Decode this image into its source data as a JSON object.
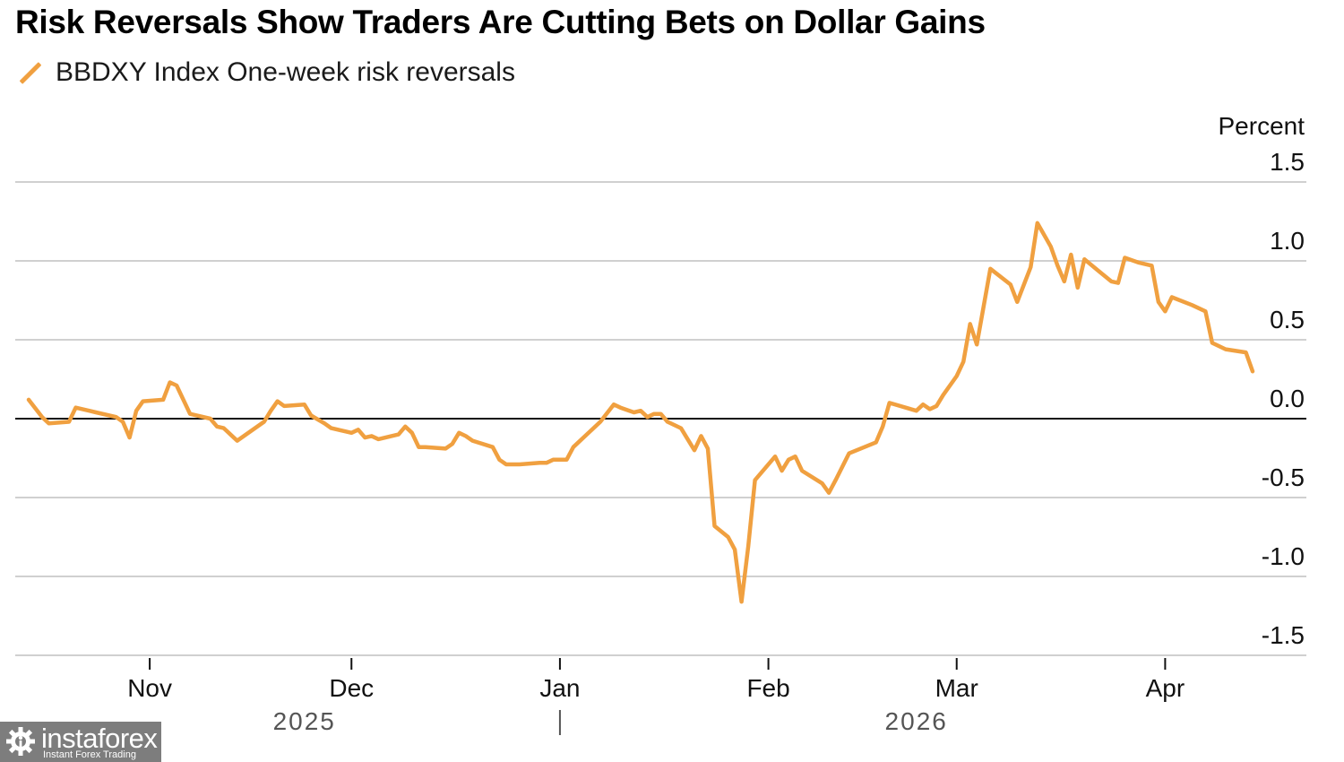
{
  "chart_data": {
    "type": "line",
    "title": "Risk Reversals Show Traders Are Cutting Bets on Dollar Gains",
    "legend": [
      {
        "name": "BBDXY Index One-week risk reversals",
        "color": "#f0a040"
      }
    ],
    "legend_placement": "top-left",
    "ylabel": "Percent",
    "ylim": [
      -1.5,
      1.5
    ],
    "yticks": [
      1.5,
      1.0,
      0.5,
      0.0,
      -0.5,
      -1.0,
      -1.5
    ],
    "ytick_labels": [
      "1.5",
      "1.0",
      "0.5",
      "0.0",
      "-0.5",
      "-1.0",
      "-1.5"
    ],
    "y_axis_side": "right",
    "grid": true,
    "zero_line": true,
    "xlim": [
      "2025-10-12",
      "2026-04-22"
    ],
    "xticks": [
      {
        "date": "2025-11-01",
        "label": "Nov"
      },
      {
        "date": "2025-12-01",
        "label": "Dec"
      },
      {
        "date": "2026-01-01",
        "label": "Jan"
      },
      {
        "date": "2026-02-01",
        "label": "Feb"
      },
      {
        "date": "2026-03-01",
        "label": "Mar"
      },
      {
        "date": "2026-04-01",
        "label": "Apr"
      }
    ],
    "year_labels": [
      {
        "label": "2025",
        "center_date": "2025-11-24"
      },
      {
        "label": "2026",
        "center_date": "2026-02-23"
      }
    ],
    "year_divider_date": "2026-01-01",
    "series": [
      {
        "name": "BBDXY Index One-week risk reversals",
        "color": "#f0a040",
        "points": [
          [
            "2025-10-14",
            0.12
          ],
          [
            "2025-10-16",
            0.01
          ],
          [
            "2025-10-17",
            -0.03
          ],
          [
            "2025-10-20",
            -0.02
          ],
          [
            "2025-10-21",
            0.07
          ],
          [
            "2025-10-23",
            0.05
          ],
          [
            "2025-10-24",
            0.04
          ],
          [
            "2025-10-27",
            0.01
          ],
          [
            "2025-10-28",
            -0.02
          ],
          [
            "2025-10-29",
            -0.12
          ],
          [
            "2025-10-30",
            0.05
          ],
          [
            "2025-10-31",
            0.11
          ],
          [
            "2025-11-03",
            0.12
          ],
          [
            "2025-11-04",
            0.23
          ],
          [
            "2025-11-05",
            0.21
          ],
          [
            "2025-11-07",
            0.03
          ],
          [
            "2025-11-10",
            0.0
          ],
          [
            "2025-11-11",
            -0.05
          ],
          [
            "2025-11-12",
            -0.06
          ],
          [
            "2025-11-14",
            -0.14
          ],
          [
            "2025-11-18",
            -0.02
          ],
          [
            "2025-11-19",
            0.05
          ],
          [
            "2025-11-20",
            0.11
          ],
          [
            "2025-11-21",
            0.08
          ],
          [
            "2025-11-24",
            0.09
          ],
          [
            "2025-11-25",
            0.02
          ],
          [
            "2025-11-27",
            -0.03
          ],
          [
            "2025-11-28",
            -0.06
          ],
          [
            "2025-12-01",
            -0.09
          ],
          [
            "2025-12-02",
            -0.07
          ],
          [
            "2025-12-03",
            -0.12
          ],
          [
            "2025-12-04",
            -0.11
          ],
          [
            "2025-12-05",
            -0.13
          ],
          [
            "2025-12-08",
            -0.1
          ],
          [
            "2025-12-09",
            -0.05
          ],
          [
            "2025-12-10",
            -0.09
          ],
          [
            "2025-12-11",
            -0.18
          ],
          [
            "2025-12-12",
            -0.18
          ],
          [
            "2025-12-15",
            -0.19
          ],
          [
            "2025-12-16",
            -0.16
          ],
          [
            "2025-12-17",
            -0.09
          ],
          [
            "2025-12-18",
            -0.11
          ],
          [
            "2025-12-19",
            -0.14
          ],
          [
            "2025-12-22",
            -0.18
          ],
          [
            "2025-12-23",
            -0.26
          ],
          [
            "2025-12-24",
            -0.29
          ],
          [
            "2025-12-26",
            -0.29
          ],
          [
            "2025-12-29",
            -0.28
          ],
          [
            "2025-12-30",
            -0.28
          ],
          [
            "2025-12-31",
            -0.26
          ],
          [
            "2026-01-02",
            -0.26
          ],
          [
            "2026-01-03",
            -0.18
          ],
          [
            "2026-01-05",
            -0.1
          ],
          [
            "2026-01-06",
            -0.06
          ],
          [
            "2026-01-07",
            -0.02
          ],
          [
            "2026-01-09",
            0.09
          ],
          [
            "2026-01-10",
            0.07
          ],
          [
            "2026-01-12",
            0.04
          ],
          [
            "2026-01-13",
            0.05
          ],
          [
            "2026-01-14",
            0.01
          ],
          [
            "2026-01-15",
            0.03
          ],
          [
            "2026-01-16",
            0.03
          ],
          [
            "2026-01-17",
            -0.02
          ],
          [
            "2026-01-19",
            -0.06
          ],
          [
            "2026-01-20",
            -0.13
          ],
          [
            "2026-01-21",
            -0.2
          ],
          [
            "2026-01-22",
            -0.11
          ],
          [
            "2026-01-23",
            -0.19
          ],
          [
            "2026-01-24",
            -0.68
          ],
          [
            "2026-01-26",
            -0.75
          ],
          [
            "2026-01-27",
            -0.83
          ],
          [
            "2026-01-28",
            -1.16
          ],
          [
            "2026-01-29",
            -0.81
          ],
          [
            "2026-01-30",
            -0.39
          ],
          [
            "2026-02-02",
            -0.24
          ],
          [
            "2026-02-03",
            -0.33
          ],
          [
            "2026-02-04",
            -0.26
          ],
          [
            "2026-02-05",
            -0.24
          ],
          [
            "2026-02-06",
            -0.33
          ],
          [
            "2026-02-09",
            -0.41
          ],
          [
            "2026-02-10",
            -0.47
          ],
          [
            "2026-02-11",
            -0.39
          ],
          [
            "2026-02-13",
            -0.22
          ],
          [
            "2026-02-17",
            -0.15
          ],
          [
            "2026-02-18",
            -0.05
          ],
          [
            "2026-02-19",
            0.1
          ],
          [
            "2026-02-23",
            0.05
          ],
          [
            "2026-02-24",
            0.09
          ],
          [
            "2026-02-25",
            0.06
          ],
          [
            "2026-02-26",
            0.08
          ],
          [
            "2026-02-27",
            0.15
          ],
          [
            "2026-03-01",
            0.27
          ],
          [
            "2026-03-02",
            0.36
          ],
          [
            "2026-03-03",
            0.6
          ],
          [
            "2026-03-04",
            0.47
          ],
          [
            "2026-03-06",
            0.95
          ],
          [
            "2026-03-09",
            0.85
          ],
          [
            "2026-03-10",
            0.74
          ],
          [
            "2026-03-12",
            0.96
          ],
          [
            "2026-03-13",
            1.24
          ],
          [
            "2026-03-15",
            1.09
          ],
          [
            "2026-03-16",
            0.97
          ],
          [
            "2026-03-17",
            0.87
          ],
          [
            "2026-03-18",
            1.04
          ],
          [
            "2026-03-19",
            0.83
          ],
          [
            "2026-03-20",
            1.01
          ],
          [
            "2026-03-22",
            0.94
          ],
          [
            "2026-03-24",
            0.87
          ],
          [
            "2026-03-25",
            0.86
          ],
          [
            "2026-03-26",
            1.02
          ],
          [
            "2026-03-28",
            0.99
          ],
          [
            "2026-03-30",
            0.97
          ],
          [
            "2026-03-31",
            0.74
          ],
          [
            "2026-04-01",
            0.68
          ],
          [
            "2026-04-02",
            0.77
          ],
          [
            "2026-04-05",
            0.72
          ],
          [
            "2026-04-07",
            0.68
          ],
          [
            "2026-04-08",
            0.48
          ],
          [
            "2026-04-10",
            0.44
          ],
          [
            "2026-04-13",
            0.42
          ],
          [
            "2026-04-14",
            0.3
          ]
        ]
      }
    ]
  },
  "watermark": {
    "brand": "instaforex",
    "tagline": "Instant Forex Trading"
  }
}
